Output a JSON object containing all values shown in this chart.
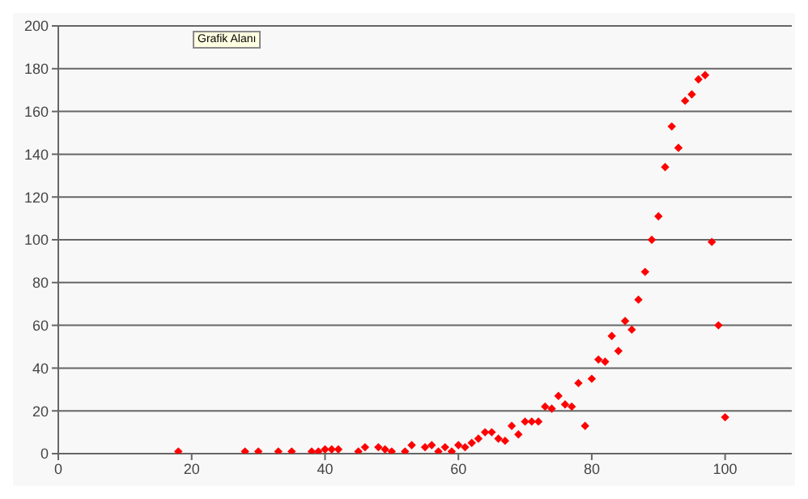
{
  "chart_data": {
    "type": "scatter",
    "annotations": [
      "Grafik Alanı"
    ],
    "x": [
      18,
      28,
      30,
      33,
      35,
      38,
      39,
      40,
      41,
      42,
      45,
      46,
      48,
      49,
      50,
      52,
      53,
      55,
      56,
      57,
      58,
      59,
      60,
      61,
      62,
      63,
      64,
      65,
      66,
      67,
      68,
      69,
      70,
      71,
      72,
      73,
      74,
      75,
      76,
      77,
      78,
      79,
      80,
      81,
      82,
      83,
      84,
      85,
      86,
      87,
      88,
      89,
      90,
      91,
      92,
      93,
      94,
      95,
      96,
      97,
      98,
      99,
      100
    ],
    "series": [
      {
        "color": "#ff0000",
        "values": [
          1,
          1,
          1,
          1,
          1,
          1,
          1,
          2,
          2,
          2,
          1,
          3,
          3,
          2,
          1,
          1,
          4,
          3,
          4,
          1,
          3,
          1,
          4,
          3,
          5,
          7,
          10,
          10,
          7,
          6,
          13,
          9,
          15,
          15,
          15,
          22,
          21,
          27,
          23,
          22,
          33,
          13,
          35,
          44,
          43,
          55,
          48,
          62,
          58,
          72,
          85,
          100,
          111,
          134,
          153,
          143,
          165,
          168,
          175,
          177,
          99,
          60,
          17
        ]
      }
    ],
    "xlim": [
      0,
      110
    ],
    "xticks": [
      0,
      20,
      40,
      60,
      80,
      100
    ],
    "ylim": [
      0,
      200
    ],
    "yticks": [
      0,
      20,
      40,
      60,
      80,
      100,
      120,
      140,
      160,
      180,
      200
    ],
    "grid": "y",
    "marker": "diamond",
    "legend": false
  }
}
